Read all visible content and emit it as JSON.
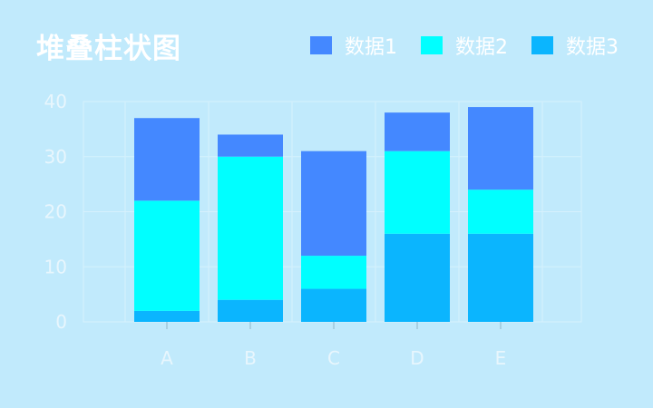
{
  "chart_data": {
    "type": "bar",
    "stacked": true,
    "title": "堆叠柱状图",
    "categories": [
      "A",
      "B",
      "C",
      "D",
      "E"
    ],
    "series": [
      {
        "name": "数据3",
        "color": "#0bb5fe",
        "values": [
          2,
          4,
          6,
          16,
          16
        ]
      },
      {
        "name": "数据2",
        "color": "#00ffff",
        "values": [
          20,
          26,
          6,
          15,
          8
        ]
      },
      {
        "name": "数据1",
        "color": "#4488ff",
        "values": [
          15,
          4,
          19,
          7,
          15
        ]
      }
    ],
    "legend": [
      {
        "name": "数据1",
        "color": "#4488ff"
      },
      {
        "name": "数据2",
        "color": "#00ffff"
      },
      {
        "name": "数据3",
        "color": "#0bb5fe"
      }
    ],
    "legend_position": "top-right",
    "ylim": [
      0,
      40
    ],
    "yticks": [
      0,
      10,
      20,
      30,
      40
    ],
    "grid": true
  }
}
